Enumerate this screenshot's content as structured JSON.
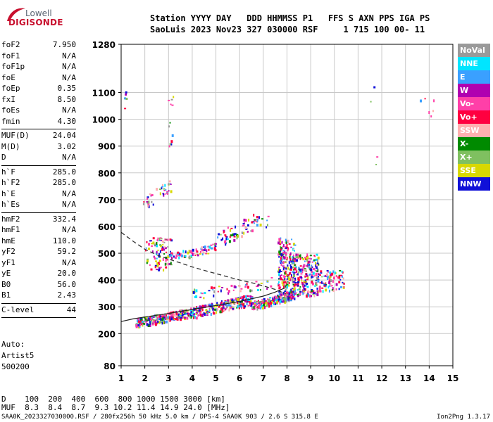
{
  "logo": {
    "line1": "Lowell",
    "line2": "DIGISONDE"
  },
  "header": {
    "row1": "Station YYYY DAY   DDD HHMMSS P1   FFS S AXN PPS IGA PS",
    "row2": "SaoLuis 2023 Nov23 327 030000 RSF     1 715 100 00- 11"
  },
  "params": [
    {
      "k": "foF2",
      "v": "7.950"
    },
    {
      "k": "foF1",
      "v": "N/A"
    },
    {
      "k": "foF1p",
      "v": "N/A"
    },
    {
      "k": "foE",
      "v": "N/A"
    },
    {
      "k": "foEp",
      "v": "0.35"
    },
    {
      "k": "fxI",
      "v": "8.50"
    },
    {
      "k": "foEs",
      "v": "N/A"
    },
    {
      "k": "fmin",
      "v": "4.30"
    },
    {
      "sep": true
    },
    {
      "k": "MUF(D)",
      "v": "24.04"
    },
    {
      "k": "M(D)",
      "v": "3.02"
    },
    {
      "k": "D",
      "v": "N/A"
    },
    {
      "sep": true
    },
    {
      "k": "h`F",
      "v": "285.0"
    },
    {
      "k": "h`F2",
      "v": "285.0"
    },
    {
      "k": "h`E",
      "v": "N/A"
    },
    {
      "k": "h`Es",
      "v": "N/A"
    },
    {
      "sep": true
    },
    {
      "k": "hmF2",
      "v": "332.4"
    },
    {
      "k": "hmF1",
      "v": "N/A"
    },
    {
      "k": "hmE",
      "v": "110.0"
    },
    {
      "k": "yF2",
      "v": "59.2"
    },
    {
      "k": "yF1",
      "v": "N/A"
    },
    {
      "k": "yE",
      "v": "20.0"
    },
    {
      "k": "B0",
      "v": "56.0"
    },
    {
      "k": "B1",
      "v": "2.43"
    },
    {
      "sep": true
    },
    {
      "k": "C-level",
      "v": "44"
    },
    {
      "sep": true
    }
  ],
  "autoscale": {
    "line1": "Auto:",
    "line2": "Artist5",
    "line3": "500200"
  },
  "legend": [
    {
      "label": "NoVal",
      "color": "#9a9a9a"
    },
    {
      "label": "NNE",
      "color": "#00e5ff"
    },
    {
      "label": "E",
      "color": "#3aa0ff"
    },
    {
      "label": "W",
      "color": "#b000b0"
    },
    {
      "label": "Vo-",
      "color": "#ff3fa8"
    },
    {
      "label": "Vo+",
      "color": "#ff0040"
    },
    {
      "label": "SSW",
      "color": "#ffb0b0"
    },
    {
      "label": "X-",
      "color": "#008a00"
    },
    {
      "label": "X+",
      "color": "#7fc060"
    },
    {
      "label": "SSE",
      "color": "#d8d800"
    },
    {
      "label": "NNW",
      "color": "#1010d8"
    }
  ],
  "muf_table": {
    "row1": "D    100  200  400  600  800 1000 1500 3000 [km]",
    "row2": "MUF  8.3  8.4  8.7  9.3 10.2 11.4 14.9 24.0 [MHz]"
  },
  "footer": "SAA0K_2023327030000.RSF / 280fx256h 50 kHz 5.0 km / DPS-4 SAA0K 903 / 2.6 S 315.8 E",
  "version": "Ion2Png 1.3.17",
  "chart_data": {
    "type": "scatter",
    "x_ticks": [
      1,
      2,
      3,
      4,
      5,
      6,
      7,
      8,
      9,
      10,
      11,
      12,
      13,
      14,
      15
    ],
    "y_ticks": [
      80,
      200,
      300,
      400,
      500,
      600,
      700,
      800,
      900,
      1000,
      1100,
      1280
    ],
    "xlim": [
      1,
      15
    ],
    "ylim": [
      80,
      1280
    ],
    "grid": true,
    "trace_profile": {
      "x": [
        1.0,
        1.5,
        2.0,
        2.5,
        3.0,
        3.5,
        4.0,
        4.5,
        5.0,
        5.5,
        6.0,
        6.5,
        7.0,
        7.5,
        7.95
      ],
      "y": [
        578,
        545,
        515,
        494,
        478,
        464,
        449,
        436,
        424,
        412,
        400,
        390,
        378,
        365,
        348
      ]
    },
    "trace_virtual": {
      "x": [
        1.0,
        1.5,
        2.0,
        3.0,
        4.0,
        5.0,
        6.0,
        7.0,
        7.5,
        7.95
      ],
      "y": [
        245,
        255,
        262,
        275,
        290,
        305,
        320,
        340,
        355,
        372
      ]
    },
    "echo_clusters": [
      {
        "x": [
          1.6,
          4.0
        ],
        "y": [
          225,
          300
        ],
        "n": 260
      },
      {
        "x": [
          4.0,
          6.5
        ],
        "y": [
          260,
          350
        ],
        "n": 260
      },
      {
        "x": [
          6.5,
          8.2
        ],
        "y": [
          290,
          360
        ],
        "n": 200
      },
      {
        "x": [
          7.6,
          8.3
        ],
        "y": [
          330,
          560
        ],
        "n": 220
      },
      {
        "x": [
          8.2,
          9.3
        ],
        "y": [
          340,
          500
        ],
        "n": 240
      },
      {
        "x": [
          9.3,
          10.4
        ],
        "y": [
          360,
          440
        ],
        "n": 80
      },
      {
        "x": [
          2.0,
          3.1
        ],
        "y": [
          440,
          560
        ],
        "n": 90
      },
      {
        "x": [
          3.0,
          5.0
        ],
        "y": [
          470,
          540
        ],
        "n": 80
      },
      {
        "x": [
          5.0,
          6.6
        ],
        "y": [
          520,
          650
        ],
        "n": 60
      },
      {
        "x": [
          1.9,
          3.1
        ],
        "y": [
          660,
          780
        ],
        "n": 40
      },
      {
        "x": [
          2.9,
          3.2
        ],
        "y": [
          870,
          1100
        ],
        "n": 12
      },
      {
        "x": [
          1.1,
          1.2
        ],
        "y": [
          1040,
          1110
        ],
        "n": 5
      },
      {
        "x": [
          6.7,
          7.2
        ],
        "y": [
          600,
          640
        ],
        "n": 12
      },
      {
        "x": [
          11.5,
          11.8
        ],
        "y": [
          770,
          1270
        ],
        "n": 4
      },
      {
        "x": [
          13.3,
          14.2
        ],
        "y": [
          1010,
          1090
        ],
        "n": 6
      },
      {
        "x": [
          4.0,
          8.0
        ],
        "y": [
          330,
          420
        ],
        "n": 60
      }
    ]
  }
}
